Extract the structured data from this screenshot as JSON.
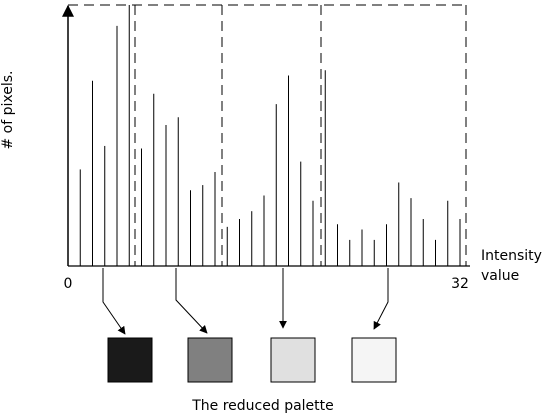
{
  "chart_data": {
    "type": "stem",
    "y_label": "# of pixels.",
    "x_label": "Intensity value",
    "caption": "The reduced palette",
    "x": [
      1,
      2,
      3,
      4,
      5,
      6,
      7,
      8,
      9,
      10,
      11,
      12,
      13,
      14,
      15,
      16,
      17,
      18,
      19,
      20,
      21,
      22,
      23,
      24,
      25,
      26,
      27,
      28,
      29,
      30,
      31,
      32
    ],
    "values": [
      37,
      71,
      46,
      92,
      100,
      45,
      66,
      54,
      57,
      29,
      31,
      36,
      15,
      18,
      21,
      27,
      62,
      73,
      40,
      25,
      75,
      16,
      10,
      14,
      10,
      16,
      32,
      26,
      18,
      10,
      25,
      18
    ],
    "xlim": [
      0,
      33
    ],
    "ylim": [
      0,
      100
    ],
    "xticks": [
      0,
      32
    ],
    "color": "#000000",
    "palette": [
      "#1a1a1a",
      "#808080",
      "#e0e0e0",
      "#f5f5f5"
    ]
  }
}
